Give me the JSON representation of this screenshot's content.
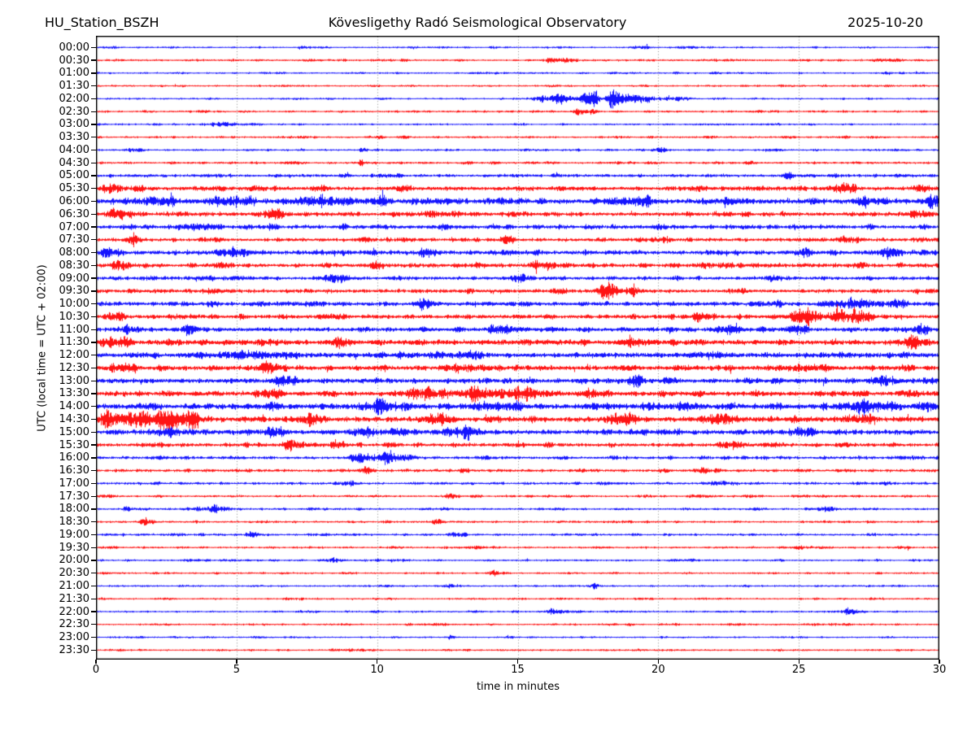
{
  "header": {
    "station": "HU_Station_BSZH",
    "title": "Kövesligethy Radó Seismological Observatory",
    "date": "2025-10-20"
  },
  "chart_data": {
    "type": "line",
    "subtype": "helicorder_dayplot",
    "title": "Kövesligethy Radó Seismological Observatory",
    "station": "HU_Station_BSZH",
    "date": "2025-10-20",
    "xlabel": "time in minutes",
    "ylabel": "UTC (local time = UTC + 02:00)",
    "xlim": [
      0,
      30
    ],
    "x_ticks": [
      0,
      5,
      10,
      15,
      20,
      25,
      30
    ],
    "minutes_per_row": 30,
    "rows_per_day": 48,
    "grid": {
      "vertical_dotted_at": [
        5,
        10,
        15,
        20,
        25
      ],
      "color": "#8a8a8a",
      "horizontal": false
    },
    "colors": {
      "even_trace": "#0000ff",
      "odd_trace": "#ff0000",
      "frame": "#000000",
      "background": "#ffffff"
    },
    "legend": null,
    "amplitude_units": "pixels_half_height",
    "event_format": [
      "center_minute",
      "width_minutes",
      "peak_amplitude_px"
    ],
    "rows": [
      {
        "label": "00:00",
        "color": "#0000ff",
        "base": 1.2,
        "events": [
          [
            7.5,
            0.3,
            1.0
          ],
          [
            19.5,
            0.3,
            1.2
          ]
        ]
      },
      {
        "label": "00:30",
        "color": "#ff0000",
        "base": 1.5,
        "events": [
          [
            16.5,
            0.6,
            1.2
          ],
          [
            22.5,
            0.4,
            1.2
          ]
        ]
      },
      {
        "label": "01:00",
        "color": "#0000ff",
        "base": 1.2,
        "events": [
          [
            14.0,
            0.3,
            1.0
          ]
        ]
      },
      {
        "label": "01:30",
        "color": "#ff0000",
        "base": 1.3,
        "events": []
      },
      {
        "label": "02:00",
        "color": "#0000ff",
        "base": 1.2,
        "events": [
          [
            15.9,
            0.35,
            4.0
          ],
          [
            16.6,
            0.3,
            5.0
          ],
          [
            17.4,
            0.35,
            6.0
          ],
          [
            17.75,
            0.12,
            9.0
          ],
          [
            18.4,
            0.22,
            12.0
          ],
          [
            18.9,
            0.4,
            5.0
          ],
          [
            19.6,
            0.6,
            3.5
          ],
          [
            20.8,
            0.4,
            2.5
          ]
        ]
      },
      {
        "label": "02:30",
        "color": "#ff0000",
        "base": 1.4,
        "events": [
          [
            17.25,
            0.25,
            5.0
          ],
          [
            17.7,
            0.15,
            3.0
          ]
        ]
      },
      {
        "label": "03:00",
        "color": "#0000ff",
        "base": 1.2,
        "events": [
          [
            4.5,
            0.45,
            3.2
          ]
        ]
      },
      {
        "label": "03:30",
        "color": "#ff0000",
        "base": 1.4,
        "events": [
          [
            10.1,
            0.12,
            2.2
          ]
        ]
      },
      {
        "label": "04:00",
        "color": "#0000ff",
        "base": 1.3,
        "events": [
          [
            1.4,
            0.35,
            2.2
          ],
          [
            9.5,
            0.12,
            4.5
          ],
          [
            20.1,
            0.25,
            1.8
          ]
        ]
      },
      {
        "label": "04:30",
        "color": "#ff0000",
        "base": 1.6,
        "events": [
          [
            9.4,
            0.08,
            3.5
          ]
        ]
      },
      {
        "label": "05:00",
        "color": "#0000ff",
        "base": 2.1,
        "events": [
          [
            24.6,
            0.25,
            2.5
          ]
        ]
      },
      {
        "label": "05:30",
        "color": "#ff0000",
        "base": 3.0,
        "events": [
          [
            0.6,
            0.4,
            5.0
          ],
          [
            10.9,
            0.25,
            4.5
          ],
          [
            26.6,
            0.4,
            4.0
          ],
          [
            29.4,
            0.35,
            5.0
          ]
        ]
      },
      {
        "label": "06:00",
        "color": "#0000ff",
        "base": 4.0,
        "events": [
          [
            2.1,
            0.7,
            5.0
          ],
          [
            4.9,
            0.5,
            5.0
          ],
          [
            7.9,
            0.9,
            5.0
          ],
          [
            10.2,
            0.12,
            9.0
          ],
          [
            19.4,
            0.5,
            4.0
          ],
          [
            27.3,
            0.2,
            8.0
          ],
          [
            29.7,
            0.3,
            5.0
          ]
        ]
      },
      {
        "label": "06:30",
        "color": "#ff0000",
        "base": 2.9,
        "events": [
          [
            0.9,
            0.5,
            5.0
          ],
          [
            6.3,
            0.35,
            4.5
          ],
          [
            29.2,
            0.4,
            3.5
          ]
        ]
      },
      {
        "label": "07:00",
        "color": "#0000ff",
        "base": 2.9,
        "events": [
          [
            3.6,
            0.7,
            3.5
          ],
          [
            6.3,
            0.15,
            5.0
          ],
          [
            12.4,
            0.25,
            3.5
          ]
        ]
      },
      {
        "label": "07:30",
        "color": "#ff0000",
        "base": 2.5,
        "events": [
          [
            1.3,
            0.25,
            4.5
          ],
          [
            14.6,
            0.3,
            2.5
          ],
          [
            20.1,
            0.35,
            2.5
          ],
          [
            26.8,
            0.5,
            3.5
          ]
        ]
      },
      {
        "label": "08:00",
        "color": "#0000ff",
        "base": 3.2,
        "events": [
          [
            0.4,
            0.3,
            5.0
          ],
          [
            5.1,
            0.5,
            3.5
          ],
          [
            11.7,
            0.25,
            4.0
          ],
          [
            25.2,
            0.15,
            6.0
          ],
          [
            28.0,
            0.45,
            3.5
          ]
        ]
      },
      {
        "label": "08:30",
        "color": "#ff0000",
        "base": 2.9,
        "events": [
          [
            0.8,
            0.35,
            4.5
          ],
          [
            10.0,
            0.25,
            4.0
          ],
          [
            16.0,
            0.45,
            3.0
          ],
          [
            21.6,
            0.25,
            3.5
          ]
        ]
      },
      {
        "label": "09:00",
        "color": "#0000ff",
        "base": 2.5,
        "events": [
          [
            8.6,
            0.45,
            3.5
          ],
          [
            15.1,
            0.35,
            2.5
          ],
          [
            24.1,
            0.35,
            3.0
          ]
        ]
      },
      {
        "label": "09:30",
        "color": "#ff0000",
        "base": 2.7,
        "events": [
          [
            4.1,
            0.4,
            3.0
          ],
          [
            18.2,
            0.35,
            6.5
          ],
          [
            19.1,
            0.25,
            4.5
          ]
        ]
      },
      {
        "label": "10:00",
        "color": "#0000ff",
        "base": 2.9,
        "events": [
          [
            11.6,
            0.25,
            3.5
          ],
          [
            24.3,
            0.12,
            6.0
          ],
          [
            27.1,
            0.5,
            5.5
          ],
          [
            28.4,
            0.35,
            5.5
          ]
        ]
      },
      {
        "label": "10:30",
        "color": "#ff0000",
        "base": 2.9,
        "events": [
          [
            0.6,
            0.35,
            5.0
          ],
          [
            21.6,
            0.35,
            4.5
          ],
          [
            25.1,
            0.5,
            6.0
          ],
          [
            26.4,
            0.35,
            7.0
          ],
          [
            27.2,
            0.45,
            8.5
          ]
        ]
      },
      {
        "label": "11:00",
        "color": "#0000ff",
        "base": 3.0,
        "events": [
          [
            1.1,
            0.25,
            4.5
          ],
          [
            3.4,
            0.25,
            6.5
          ],
          [
            14.4,
            0.45,
            5.0
          ],
          [
            22.6,
            0.5,
            4.5
          ],
          [
            24.9,
            0.35,
            5.5
          ],
          [
            29.3,
            0.25,
            4.5
          ]
        ]
      },
      {
        "label": "11:30",
        "color": "#ff0000",
        "base": 3.6,
        "events": [
          [
            0.5,
            0.45,
            5.0
          ],
          [
            8.6,
            0.35,
            5.0
          ],
          [
            19.1,
            0.5,
            4.5
          ],
          [
            29.0,
            0.5,
            5.0
          ]
        ]
      },
      {
        "label": "12:00",
        "color": "#0000ff",
        "base": 3.6,
        "events": [
          [
            5.5,
            0.9,
            4.5
          ],
          [
            13.1,
            0.45,
            3.5
          ],
          [
            22.1,
            0.45,
            3.5
          ]
        ]
      },
      {
        "label": "12:30",
        "color": "#ff0000",
        "base": 3.4,
        "events": [
          [
            1.0,
            0.5,
            4.5
          ],
          [
            6.1,
            0.45,
            4.5
          ],
          [
            13.1,
            0.5,
            3.5
          ],
          [
            25.1,
            0.7,
            3.5
          ]
        ]
      },
      {
        "label": "13:00",
        "color": "#0000ff",
        "base": 3.4,
        "events": [
          [
            6.6,
            0.45,
            4.5
          ],
          [
            19.2,
            0.25,
            6.0
          ],
          [
            28.1,
            0.45,
            4.5
          ]
        ]
      },
      {
        "label": "13:30",
        "color": "#ff0000",
        "base": 3.4,
        "events": [
          [
            6.1,
            0.35,
            4.5
          ],
          [
            11.6,
            0.7,
            5.5
          ],
          [
            13.6,
            0.9,
            6.5
          ],
          [
            15.1,
            0.45,
            5.5
          ],
          [
            17.6,
            0.35,
            5.5
          ]
        ]
      },
      {
        "label": "14:00",
        "color": "#0000ff",
        "base": 4.0,
        "events": [
          [
            10.1,
            0.9,
            4.5
          ],
          [
            14.1,
            0.7,
            4.5
          ],
          [
            21.1,
            0.45,
            3.5
          ],
          [
            27.6,
            0.7,
            5.5
          ],
          [
            29.6,
            0.25,
            5.5
          ]
        ]
      },
      {
        "label": "14:30",
        "color": "#ff0000",
        "base": 3.6,
        "events": [
          [
            0.5,
            0.45,
            8.5
          ],
          [
            1.6,
            0.7,
            9.5
          ],
          [
            2.8,
            0.45,
            7.5
          ],
          [
            3.4,
            0.25,
            6.5
          ],
          [
            7.6,
            0.35,
            6.5
          ],
          [
            12.1,
            0.45,
            4.5
          ],
          [
            18.6,
            0.5,
            5.5
          ],
          [
            22.1,
            0.45,
            4.5
          ],
          [
            27.1,
            0.45,
            4.5
          ]
        ]
      },
      {
        "label": "15:00",
        "color": "#0000ff",
        "base": 3.4,
        "events": [
          [
            2.6,
            0.5,
            4.5
          ],
          [
            6.4,
            0.35,
            5.5
          ],
          [
            9.6,
            0.45,
            4.5
          ],
          [
            13.1,
            0.7,
            4.5
          ],
          [
            25.1,
            0.45,
            3.5
          ]
        ]
      },
      {
        "label": "15:30",
        "color": "#ff0000",
        "base": 2.7,
        "events": [
          [
            7.1,
            0.35,
            5.5
          ],
          [
            8.6,
            0.25,
            4.5
          ],
          [
            22.6,
            0.5,
            4.5
          ],
          [
            24.1,
            0.25,
            3.5
          ]
        ]
      },
      {
        "label": "16:00",
        "color": "#0000ff",
        "base": 2.1,
        "events": [
          [
            9.4,
            0.35,
            5.5
          ],
          [
            10.3,
            0.45,
            6.5
          ],
          [
            11.1,
            0.25,
            4.5
          ],
          [
            28.6,
            0.25,
            2.5
          ]
        ]
      },
      {
        "label": "16:30",
        "color": "#ff0000",
        "base": 2.1,
        "events": [
          [
            9.6,
            0.25,
            3.5
          ],
          [
            21.6,
            0.35,
            2.5
          ]
        ]
      },
      {
        "label": "17:00",
        "color": "#0000ff",
        "base": 1.7,
        "events": [
          [
            8.9,
            0.35,
            2.5
          ],
          [
            22.1,
            0.45,
            2.5
          ],
          [
            28.1,
            0.25,
            2.5
          ]
        ]
      },
      {
        "label": "17:30",
        "color": "#ff0000",
        "base": 1.5,
        "events": [
          [
            12.6,
            0.25,
            2.0
          ]
        ]
      },
      {
        "label": "18:00",
        "color": "#0000ff",
        "base": 1.5,
        "events": [
          [
            1.1,
            0.15,
            2.8
          ],
          [
            4.2,
            0.6,
            3.8
          ],
          [
            26.1,
            0.25,
            2.2
          ]
        ]
      },
      {
        "label": "18:30",
        "color": "#ff0000",
        "base": 1.5,
        "events": [
          [
            1.8,
            0.25,
            3.2
          ],
          [
            12.1,
            0.25,
            2.2
          ]
        ]
      },
      {
        "label": "19:00",
        "color": "#0000ff",
        "base": 1.5,
        "events": [
          [
            5.6,
            0.25,
            2.2
          ],
          [
            12.9,
            0.25,
            2.0
          ]
        ]
      },
      {
        "label": "19:30",
        "color": "#ff0000",
        "base": 1.4,
        "events": [
          [
            25.1,
            0.25,
            2.2
          ]
        ]
      },
      {
        "label": "20:00",
        "color": "#0000ff",
        "base": 1.4,
        "events": [
          [
            8.6,
            0.25,
            2.2
          ]
        ]
      },
      {
        "label": "20:30",
        "color": "#ff0000",
        "base": 1.3,
        "events": [
          [
            14.1,
            0.25,
            1.8
          ]
        ]
      },
      {
        "label": "21:00",
        "color": "#0000ff",
        "base": 1.3,
        "events": [
          [
            12.6,
            0.25,
            2.5
          ],
          [
            17.7,
            0.25,
            2.0
          ]
        ]
      },
      {
        "label": "21:30",
        "color": "#ff0000",
        "base": 1.3,
        "events": []
      },
      {
        "label": "22:00",
        "color": "#0000ff",
        "base": 1.3,
        "events": [
          [
            16.2,
            0.25,
            3.2
          ],
          [
            26.8,
            0.3,
            3.8
          ]
        ]
      },
      {
        "label": "22:30",
        "color": "#ff0000",
        "base": 1.3,
        "events": [
          [
            19.0,
            0.15,
            2.2
          ]
        ]
      },
      {
        "label": "23:00",
        "color": "#0000ff",
        "base": 1.2,
        "events": [
          [
            12.6,
            0.15,
            1.8
          ]
        ]
      },
      {
        "label": "23:30",
        "color": "#ff0000",
        "base": 1.3,
        "events": []
      }
    ]
  }
}
